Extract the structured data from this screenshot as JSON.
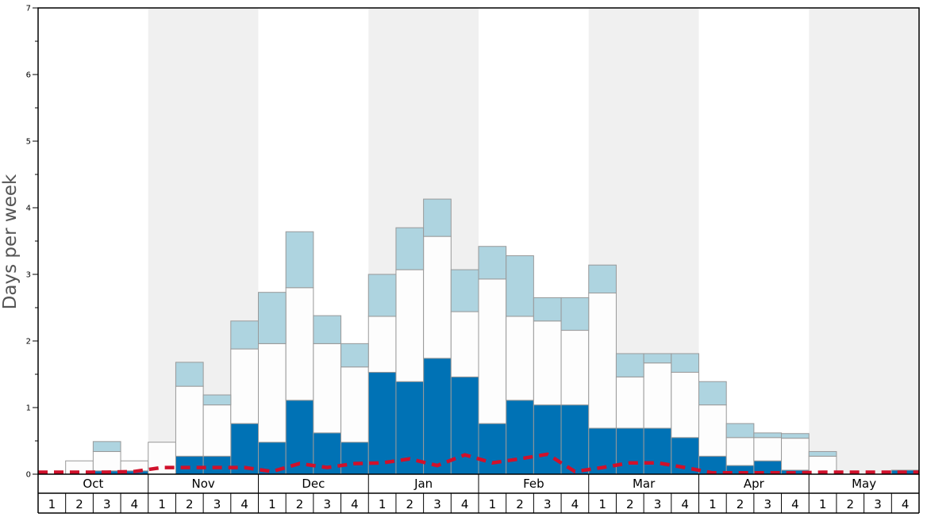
{
  "chart_data": {
    "type": "bar",
    "ylabel": "Days per week",
    "ylim": [
      0,
      7
    ],
    "y_ticks": [
      "0",
      "1",
      "2",
      "3",
      "4",
      "5",
      "6",
      "7"
    ],
    "months": [
      "Oct",
      "Nov",
      "Dec",
      "Jan",
      "Feb",
      "Mar",
      "Apr",
      "May"
    ],
    "weeks": [
      "1",
      "2",
      "3",
      "4"
    ],
    "categories": [
      "Oct 1",
      "Oct 2",
      "Oct 3",
      "Oct 4",
      "Nov 1",
      "Nov 2",
      "Nov 3",
      "Nov 4",
      "Dec 1",
      "Dec 2",
      "Dec 3",
      "Dec 4",
      "Jan 1",
      "Jan 2",
      "Jan 3",
      "Jan 4",
      "Feb 1",
      "Feb 2",
      "Feb 3",
      "Feb 4",
      "Mar 1",
      "Mar 2",
      "Mar 3",
      "Mar 4",
      "Apr 1",
      "Apr 2",
      "Apr 3",
      "Apr 4",
      "May 1",
      "May 2",
      "May 3",
      "May 4"
    ],
    "shaded_months": [
      "Nov",
      "Jan",
      "Mar",
      "May"
    ],
    "grid": false,
    "series": [
      {
        "kind": "stacked-bar",
        "color": "#0072b5",
        "values": [
          0,
          0,
          0.05,
          0.05,
          0,
          0.27,
          0.27,
          0.76,
          0.48,
          1.11,
          0.62,
          0.48,
          1.53,
          1.39,
          1.74,
          1.46,
          0.76,
          1.11,
          1.04,
          1.04,
          0.69,
          0.69,
          0.69,
          0.55,
          0.27,
          0.13,
          0.2,
          0.06,
          0,
          0,
          0,
          0.06
        ]
      },
      {
        "kind": "stacked-bar",
        "color": "#fdfdfd",
        "values": [
          0,
          0.2,
          0.29,
          0.15,
          0.48,
          1.05,
          0.77,
          1.12,
          1.48,
          1.69,
          1.34,
          1.13,
          0.84,
          1.68,
          1.83,
          0.98,
          2.17,
          1.26,
          1.26,
          1.12,
          2.03,
          0.77,
          0.98,
          0.98,
          0.77,
          0.42,
          0.35,
          0.48,
          0.27,
          0,
          0,
          0
        ]
      },
      {
        "kind": "stacked-bar",
        "color": "#aed4e0",
        "values": [
          0,
          0,
          0.15,
          0,
          0,
          0.36,
          0.15,
          0.42,
          0.77,
          0.84,
          0.42,
          0.35,
          0.63,
          0.63,
          0.56,
          0.63,
          0.49,
          0.91,
          0.35,
          0.49,
          0.42,
          0.35,
          0.14,
          0.28,
          0.35,
          0.21,
          0.07,
          0.07,
          0.07,
          0,
          0,
          0
        ]
      },
      {
        "kind": "line",
        "color": "#d0112b",
        "style": "dashed",
        "values": [
          0.03,
          0.03,
          0.03,
          0.04,
          0.1,
          0.1,
          0.1,
          0.1,
          0.04,
          0.16,
          0.1,
          0.16,
          0.17,
          0.23,
          0.13,
          0.29,
          0.17,
          0.23,
          0.3,
          0.04,
          0.1,
          0.17,
          0.17,
          0.1,
          0.02,
          0.02,
          0.02,
          0.02,
          0.03,
          0.03,
          0.03,
          0.03
        ]
      }
    ]
  }
}
